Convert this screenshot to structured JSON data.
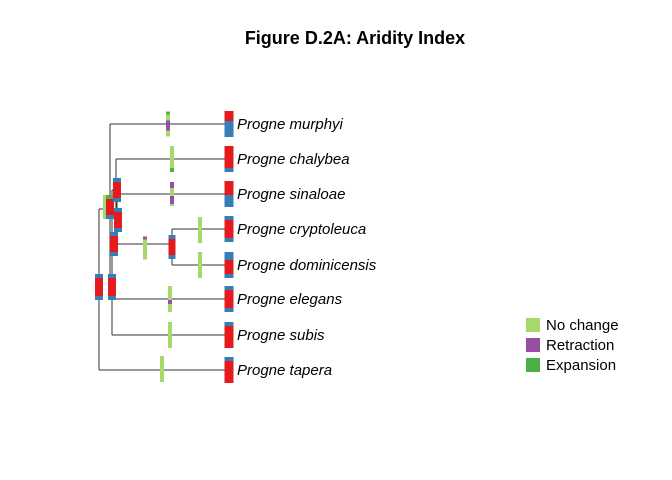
{
  "title": "Figure D.2A: Aridity Index",
  "taxa": [
    "Progne murphyi",
    "Progne chalybea",
    "Progne sinaloae",
    "Progne cryptoleuca",
    "Progne dominicensis",
    "Progne elegans",
    "Progne subis",
    "Progne tapera"
  ],
  "colors": {
    "no_change": "#A6D96A",
    "retraction": "#984EA3",
    "expansion": "#4DAF4A",
    "state_red": "#E41A1C",
    "state_blue": "#377EB8"
  },
  "legend": [
    {
      "label": "No change",
      "color": "#A6D96A"
    },
    {
      "label": "Retraction",
      "color": "#984EA3"
    },
    {
      "label": "Expansion",
      "color": "#4DAF4A"
    }
  ]
}
